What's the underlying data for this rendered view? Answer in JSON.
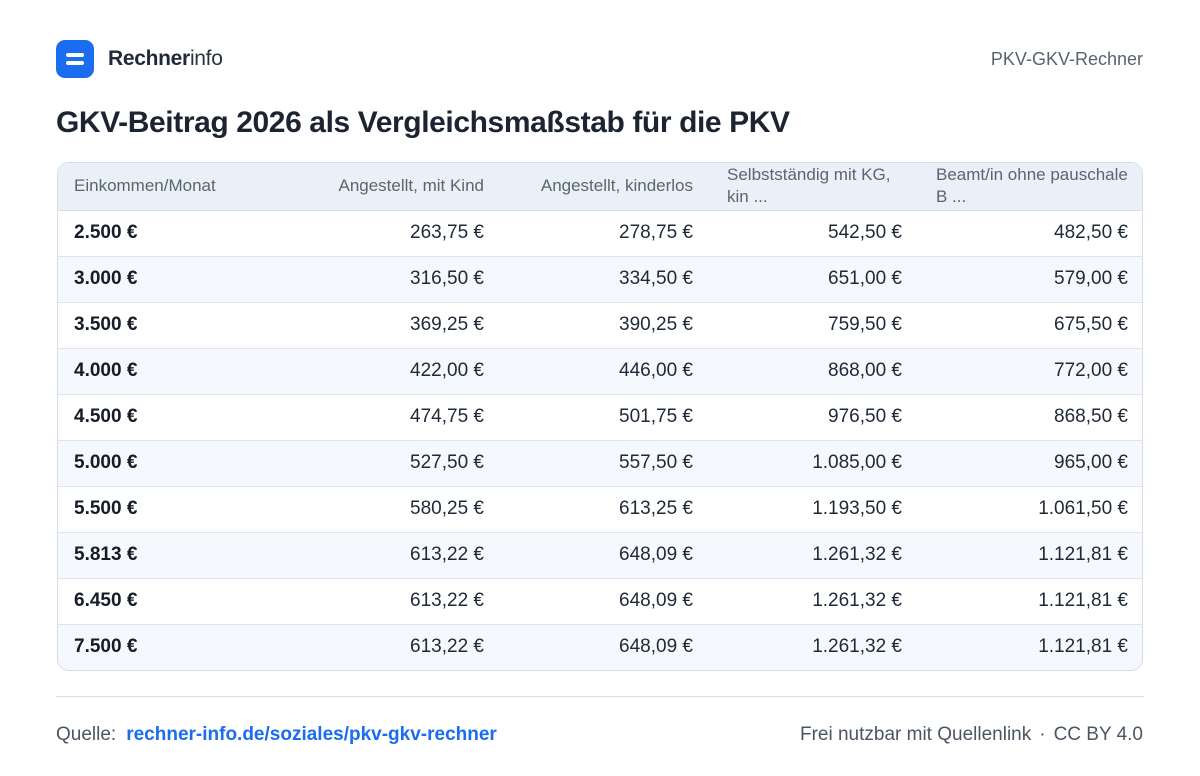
{
  "header": {
    "brand_bold": "Rechner",
    "brand_light": "info",
    "right_label": "PKV-GKV-Rechner",
    "logo_icon": "rechner-logo-icon",
    "accent_color": "#1a6cf0"
  },
  "title": "GKV-Beitrag 2026 als Vergleichsmaßstab für die PKV",
  "table": {
    "columns": [
      "Einkommen/Monat",
      "Angestellt, mit Kind",
      "Angestellt, kinderlos",
      "Selbstständig mit KG, kin ...",
      "Beamt/in ohne pauschale B ..."
    ],
    "rows": [
      [
        "2.500 €",
        "263,75 €",
        "278,75 €",
        "542,50 €",
        "482,50 €"
      ],
      [
        "3.000 €",
        "316,50 €",
        "334,50 €",
        "651,00 €",
        "579,00 €"
      ],
      [
        "3.500 €",
        "369,25 €",
        "390,25 €",
        "759,50 €",
        "675,50 €"
      ],
      [
        "4.000 €",
        "422,00 €",
        "446,00 €",
        "868,00 €",
        "772,00 €"
      ],
      [
        "4.500 €",
        "474,75 €",
        "501,75 €",
        "976,50 €",
        "868,50 €"
      ],
      [
        "5.000 €",
        "527,50 €",
        "557,50 €",
        "1.085,00 €",
        "965,00 €"
      ],
      [
        "5.500 €",
        "580,25 €",
        "613,25 €",
        "1.193,50 €",
        "1.061,50 €"
      ],
      [
        "5.813 €",
        "613,22 €",
        "648,09 €",
        "1.261,32 €",
        "1.121,81 €"
      ],
      [
        "6.450 €",
        "613,22 €",
        "648,09 €",
        "1.261,32 €",
        "1.121,81 €"
      ],
      [
        "7.500 €",
        "613,22 €",
        "648,09 €",
        "1.261,32 €",
        "1.121,81 €"
      ]
    ]
  },
  "footer": {
    "source_label": "Quelle:",
    "source_link": "rechner-info.de/soziales/pkv-gkv-rechner",
    "license_text": "Frei nutzbar mit Quellenlink",
    "separator": "·",
    "license": "CC BY 4.0"
  }
}
